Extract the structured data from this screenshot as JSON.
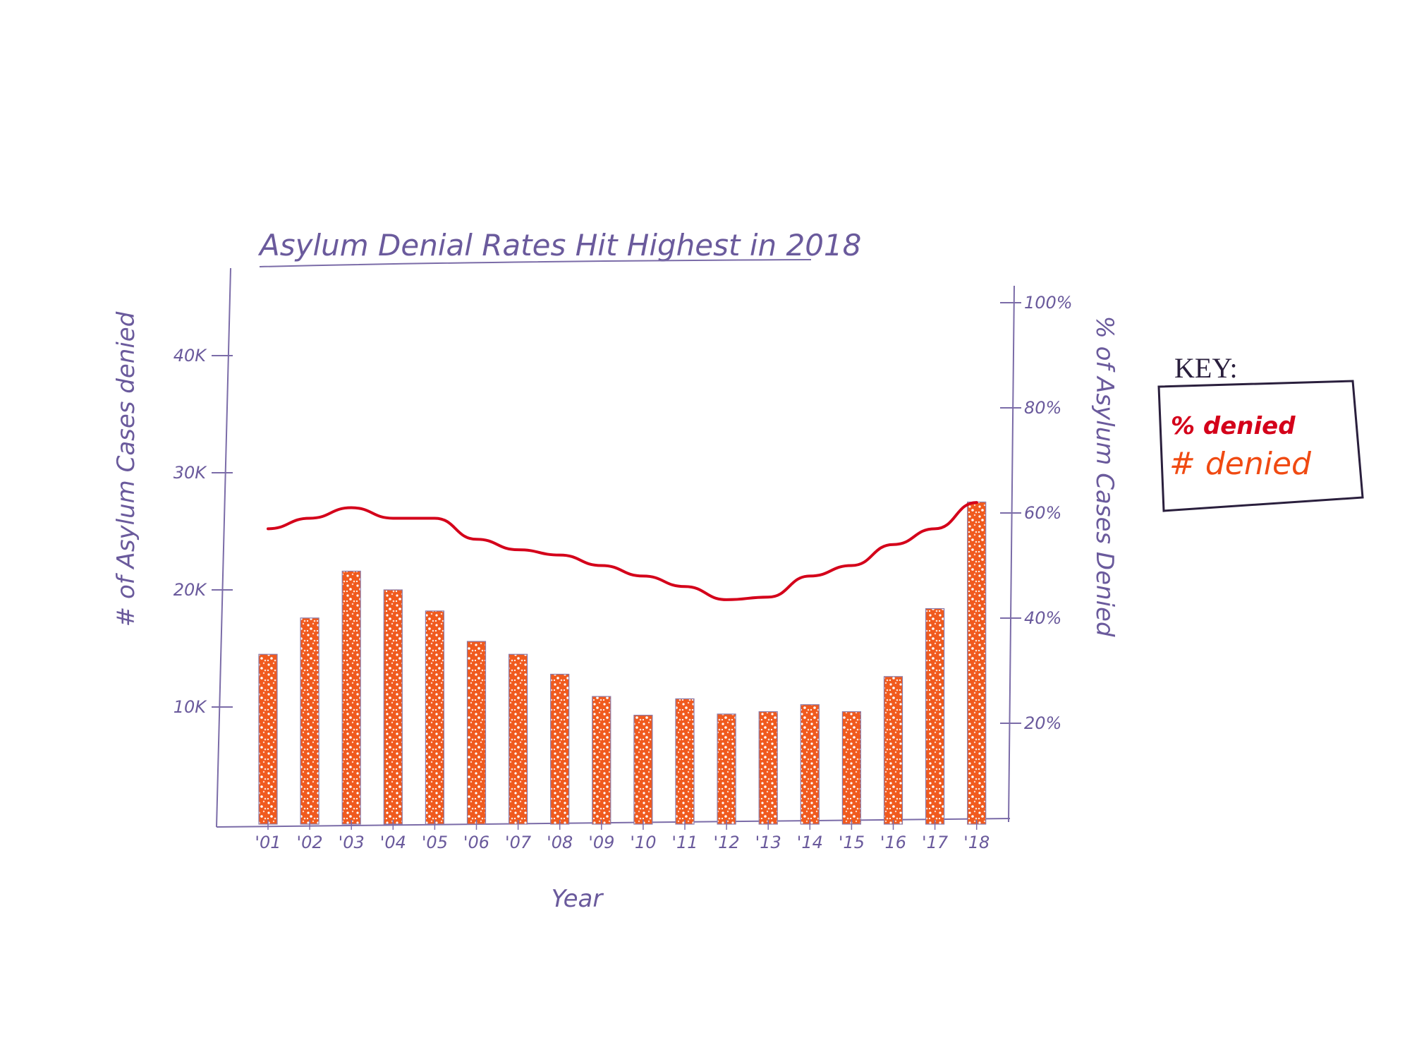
{
  "chart_data": {
    "type": "bar",
    "title": "Asylum Denial Rates Hit Highest in 2018",
    "xlabel": "Year",
    "ylabel_left": "# of Asylum Cases denied",
    "ylabel_right": "% of Asylum Cases Denied",
    "categories": [
      "'01",
      "'02",
      "'03",
      "'04",
      "'05",
      "'06",
      "'07",
      "'08",
      "'09",
      "'10",
      "'11",
      "'12",
      "'13",
      "'14",
      "'15",
      "'16",
      "'17",
      "'18"
    ],
    "left_ticks": [
      "10K",
      "20K",
      "30K",
      "40K"
    ],
    "left_tick_values": [
      10000,
      20000,
      30000,
      40000
    ],
    "right_ticks": [
      "20%",
      "40%",
      "60%",
      "80%",
      "100%"
    ],
    "right_tick_values": [
      20,
      40,
      60,
      80,
      100
    ],
    "ylim_left": [
      0,
      45000
    ],
    "ylim_right": [
      0,
      100
    ],
    "series": [
      {
        "name": "# denied",
        "type": "bar",
        "axis": "left",
        "color": "#f04a12",
        "values": [
          14500,
          17600,
          21600,
          20000,
          18200,
          15600,
          14500,
          12800,
          10900,
          9300,
          10700,
          9400,
          9600,
          10200,
          9600,
          12600,
          18400,
          27500
        ]
      },
      {
        "name": "% denied",
        "type": "line",
        "axis": "right",
        "color": "#d4001a",
        "values": [
          57,
          59,
          61,
          59,
          59,
          55,
          53,
          52,
          50,
          48,
          46,
          43.5,
          44,
          48,
          50,
          54,
          57,
          62
        ]
      }
    ],
    "legend": {
      "title": "KEY:",
      "position": "right",
      "entries": [
        "% denied",
        "# denied"
      ]
    },
    "grid": false
  }
}
